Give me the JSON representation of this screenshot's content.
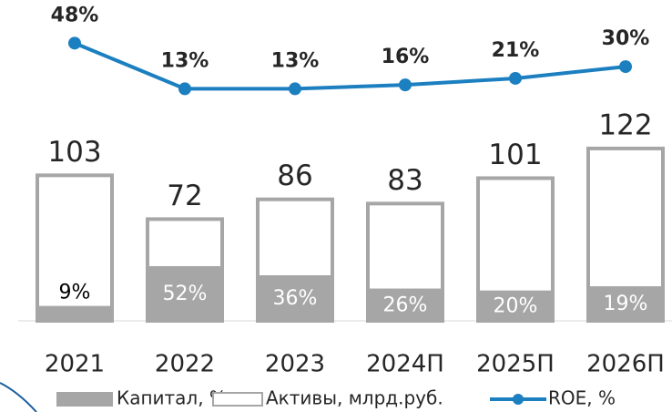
{
  "chart_data": {
    "type": "bar-line",
    "categories": [
      "2021",
      "2022",
      "2023",
      "2024П",
      "2025П",
      "2026П"
    ],
    "series": [
      {
        "name": "Капитал, %",
        "color": "#a6a6a6",
        "values": [
          9,
          52,
          36,
          26,
          20,
          19
        ],
        "value_labels": [
          "9%",
          "52%",
          "36%",
          "26%",
          "20%",
          "19%"
        ]
      },
      {
        "name": "Активы, млрд.руб.",
        "color": "#a6a6a6",
        "values": [
          103,
          72,
          86,
          83,
          101,
          122
        ]
      },
      {
        "name": "ROE, %",
        "color": "#1b7fc0",
        "values": [
          48,
          13,
          13,
          16,
          21,
          30
        ],
        "value_labels": [
          "48%",
          "13%",
          "13%",
          "16%",
          "21%",
          "30%"
        ]
      }
    ]
  }
}
